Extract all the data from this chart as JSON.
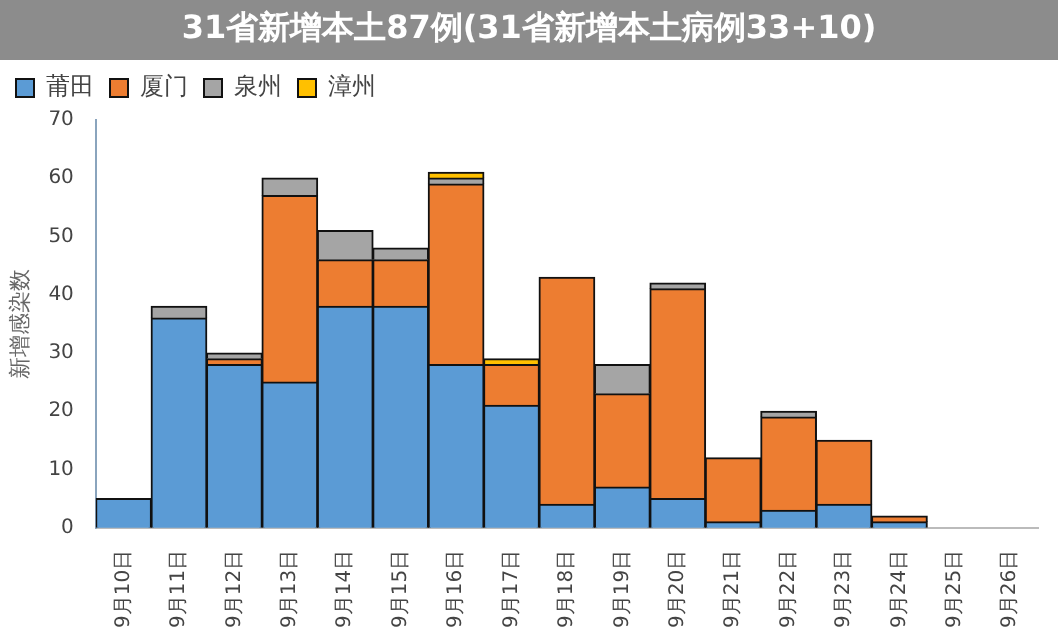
{
  "chart_data": {
    "type": "bar",
    "stacked": true,
    "title": "31省新增本土87例(31省新增本土病例33+10)",
    "ylabel": "新增感染数",
    "categories": [
      "9月10日",
      "9月11日",
      "9月12日",
      "9月13日",
      "9月14日",
      "9月15日",
      "9月16日",
      "9月17日",
      "9月18日",
      "9月19日",
      "9月20日",
      "9月21日",
      "9月22日",
      "9月23日",
      "9月24日",
      "9月25日",
      "9月26日"
    ],
    "series": [
      {
        "name": "莆田",
        "color": "#5b9bd5",
        "values": [
          5,
          36,
          28,
          25,
          38,
          38,
          28,
          21,
          4,
          7,
          5,
          1,
          3,
          4,
          1,
          0,
          0
        ]
      },
      {
        "name": "厦门",
        "color": "#ed7d31",
        "values": [
          0,
          0,
          1,
          32,
          8,
          8,
          31,
          7,
          39,
          16,
          36,
          11,
          16,
          11,
          1,
          0,
          0
        ]
      },
      {
        "name": "泉州",
        "color": "#a5a5a5",
        "values": [
          0,
          2,
          1,
          3,
          5,
          2,
          1,
          0,
          0,
          5,
          1,
          0,
          1,
          0,
          0,
          0,
          0
        ]
      },
      {
        "name": "漳州",
        "color": "#ffc000",
        "values": [
          0,
          0,
          0,
          0,
          0,
          0,
          1,
          1,
          0,
          0,
          0,
          0,
          0,
          0,
          0,
          0,
          0
        ]
      }
    ],
    "ylim": [
      0,
      70
    ],
    "yticks": [
      0,
      10,
      20,
      30,
      40,
      50,
      60,
      70
    ],
    "grid": false,
    "legend": "top"
  }
}
